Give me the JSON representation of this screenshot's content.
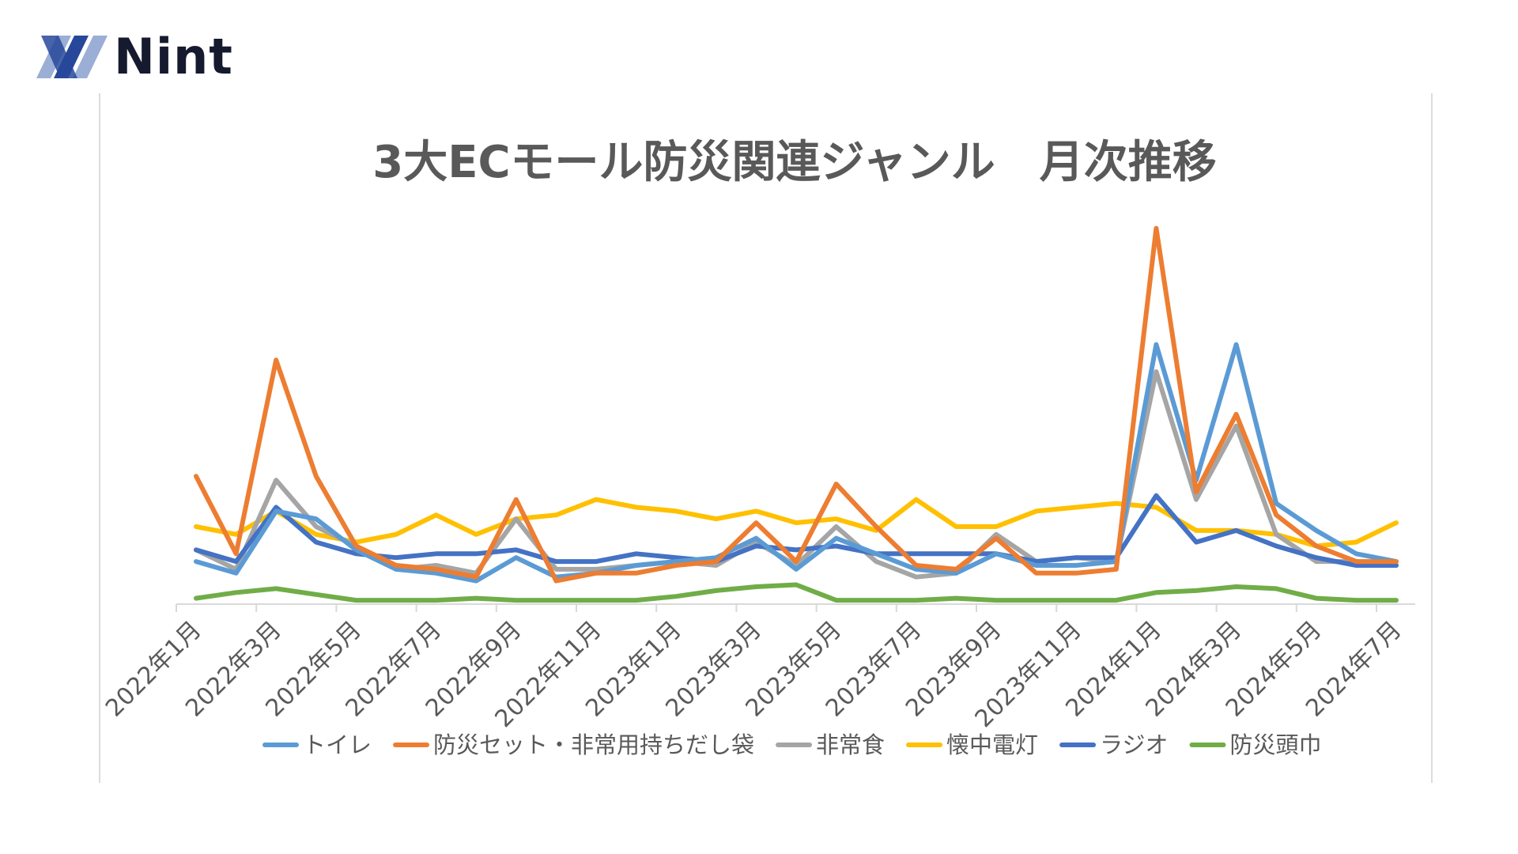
{
  "brand": {
    "name": "Nint",
    "colors": {
      "mark_dark": "#27489a",
      "mark_light": "#9aaed6",
      "text": "#151a2e"
    }
  },
  "chart_data": {
    "type": "line",
    "title": "3大ECモール防災関連ジャンル　月次推移",
    "xlabel": "",
    "ylabel": "",
    "y_axis_visible": false,
    "ylim": [
      0,
      100
    ],
    "grid": false,
    "legend_position": "bottom",
    "x": [
      "2022年1月",
      "2022年2月",
      "2022年3月",
      "2022年4月",
      "2022年5月",
      "2022年6月",
      "2022年7月",
      "2022年8月",
      "2022年9月",
      "2022年10月",
      "2022年11月",
      "2022年12月",
      "2023年1月",
      "2023年2月",
      "2023年3月",
      "2023年4月",
      "2023年5月",
      "2023年6月",
      "2023年7月",
      "2023年8月",
      "2023年9月",
      "2023年10月",
      "2023年11月",
      "2023年12月",
      "2024年1月",
      "2024年2月",
      "2024年3月",
      "2024年4月",
      "2024年5月",
      "2024年6月",
      "2024年7月"
    ],
    "tick_labels": [
      "2022年1月",
      "2022年3月",
      "2022年5月",
      "2022年7月",
      "2022年9月",
      "2022年11月",
      "2023年1月",
      "2023年3月",
      "2023年5月",
      "2023年7月",
      "2023年9月",
      "2023年11月",
      "2024年1月",
      "2024年3月",
      "2024年5月",
      "2024年7月"
    ],
    "series": [
      {
        "name": "トイレ",
        "color": "#5b9bd5",
        "values": [
          11,
          8,
          24,
          22,
          14,
          9,
          8,
          6,
          12,
          7,
          8,
          10,
          11,
          12,
          17,
          9,
          17,
          13,
          9,
          8,
          13,
          10,
          10,
          11,
          67,
          32,
          67,
          26,
          19,
          13,
          11
        ]
      },
      {
        "name": "防災セット・非常用持ちだし袋",
        "color": "#ed7d31",
        "values": [
          33,
          13,
          63,
          33,
          15,
          10,
          9,
          7,
          27,
          6,
          8,
          8,
          10,
          11,
          21,
          11,
          31,
          20,
          10,
          9,
          17,
          8,
          8,
          9,
          97,
          29,
          49,
          23,
          15,
          11,
          11
        ]
      },
      {
        "name": "非常食",
        "color": "#a5a5a5",
        "values": [
          14,
          9,
          32,
          20,
          15,
          9,
          10,
          8,
          22,
          9,
          9,
          10,
          11,
          10,
          16,
          10,
          20,
          11,
          7,
          8,
          18,
          11,
          12,
          11,
          60,
          27,
          46,
          18,
          11,
          11,
          10
        ]
      },
      {
        "name": "懐中電灯",
        "color": "#ffc000",
        "values": [
          20,
          18,
          24,
          18,
          16,
          18,
          23,
          18,
          22,
          23,
          27,
          25,
          24,
          22,
          24,
          21,
          22,
          19,
          27,
          20,
          20,
          24,
          25,
          26,
          25,
          19,
          19,
          18,
          15,
          16,
          21
        ]
      },
      {
        "name": "ラジオ",
        "color": "#4472c4",
        "values": [
          14,
          11,
          25,
          16,
          13,
          12,
          13,
          13,
          14,
          11,
          11,
          13,
          12,
          11,
          15,
          14,
          15,
          13,
          13,
          13,
          13,
          11,
          12,
          12,
          28,
          16,
          19,
          15,
          12,
          10,
          10
        ]
      },
      {
        "name": "防災頭巾",
        "color": "#70ad47",
        "values": [
          1.5,
          3,
          4,
          2.5,
          1,
          1,
          1,
          1.5,
          1,
          1,
          1,
          1,
          2,
          3.5,
          4.5,
          5,
          1,
          1,
          1,
          1.5,
          1,
          1,
          1,
          1,
          3,
          3.5,
          4.5,
          4,
          1.5,
          1,
          1
        ]
      }
    ]
  }
}
